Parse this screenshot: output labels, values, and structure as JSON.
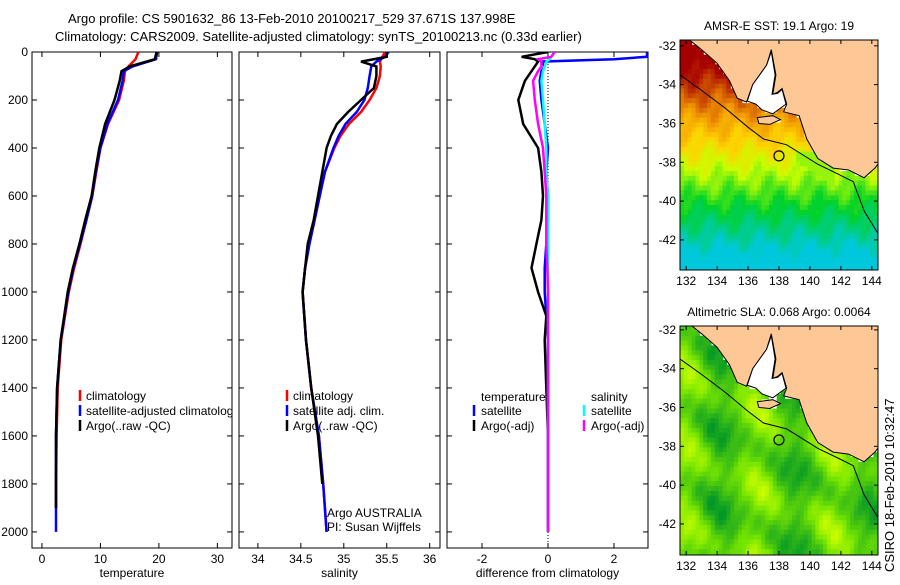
{
  "title_line1": "Argo profile: CS 5901632_86 13-Feb-2010 20100217_529 37.671S 137.998E",
  "title_line2": "Climatology: CARS2009. Satellite-adjusted climatology: synTS_20100213.nc (0.33d earlier)",
  "footer_stamp": "CSIRO 18-Feb-2010 10:32:47",
  "colors": {
    "climatology": "#ff0000",
    "satellite": "#0000ff",
    "argo": "#000000",
    "sal_satellite": "#00ffff",
    "sal_argo": "#ff00ff"
  },
  "chart_data": [
    {
      "type": "line",
      "xlabel": "temperature",
      "ylabel": "",
      "xlim": [
        -1.7,
        32.5
      ],
      "ylim": [
        0,
        2067
      ],
      "y_inverted": true,
      "xticks": [
        "0",
        "10",
        "20",
        "30"
      ],
      "xtick_values": [
        0,
        10,
        20,
        30
      ],
      "ytick_values": [
        0,
        200,
        400,
        600,
        800,
        1000,
        1200,
        1400,
        1600,
        1800,
        2000
      ],
      "yticks": [
        "0",
        "200",
        "400",
        "600",
        "800",
        "1000",
        "1200",
        "1400",
        "1600",
        "1800",
        "2000"
      ],
      "legend": [
        "climatology",
        "satellite-adjusted climatology",
        "Argo(..raw -QC)"
      ],
      "legend_placement": "lower-right",
      "pressure": [
        0,
        30,
        60,
        80,
        120,
        200,
        300,
        400,
        500,
        600,
        700,
        800,
        900,
        1000,
        1200,
        1400,
        1600,
        1800,
        1900,
        2000
      ],
      "series": [
        {
          "name": "climatology",
          "color_key": "climatology",
          "values": [
            16.5,
            16.0,
            14.8,
            14.2,
            14.0,
            13.2,
            11.3,
            10.0,
            9.3,
            8.6,
            7.6,
            6.6,
            5.5,
            4.6,
            3.3,
            2.7,
            2.5,
            2.4,
            2.4,
            null
          ]
        },
        {
          "name": "satellite-adjusted climatology",
          "color_key": "satellite",
          "values": [
            19.7,
            19.5,
            15.5,
            14.0,
            13.8,
            13.0,
            11.2,
            10.0,
            9.2,
            8.6,
            7.6,
            6.5,
            5.4,
            4.5,
            3.2,
            2.6,
            2.4,
            2.4,
            2.4,
            2.4
          ]
        },
        {
          "name": "Argo(..raw -QC)",
          "color_key": "argo",
          "values": [
            19.6,
            19.3,
            15.0,
            13.6,
            13.3,
            12.4,
            10.8,
            9.8,
            9.1,
            8.5,
            7.4,
            6.4,
            5.3,
            4.4,
            3.2,
            2.6,
            2.4,
            2.4,
            2.4,
            null
          ]
        }
      ]
    },
    {
      "type": "line",
      "xlabel": "salinity",
      "xlim": [
        33.78,
        36.12
      ],
      "ylim": [
        0,
        2067
      ],
      "y_inverted": true,
      "xticks": [
        "34",
        "34.5",
        "35",
        "35.5",
        "36"
      ],
      "xtick_values": [
        34,
        34.5,
        35,
        35.5,
        36
      ],
      "ytick_values": [
        0,
        200,
        400,
        600,
        800,
        1000,
        1200,
        1400,
        1600,
        1800,
        2000
      ],
      "legend": [
        "climatology",
        "satellite adj. clim.",
        "Argo(..raw -QC)"
      ],
      "legend_placement": "lower-right",
      "annotation": [
        "Argo AUSTRALIA",
        "PI: Susan Wijffels"
      ],
      "pressure": [
        0,
        20,
        40,
        60,
        100,
        150,
        200,
        250,
        300,
        350,
        400,
        500,
        600,
        700,
        800,
        900,
        1000,
        1200,
        1400,
        1600,
        1800,
        2000
      ],
      "series": [
        {
          "name": "climatology",
          "color_key": "climatology",
          "values": [
            35.48,
            35.45,
            35.42,
            35.43,
            35.42,
            35.38,
            35.3,
            35.2,
            35.06,
            34.96,
            34.89,
            34.78,
            34.72,
            34.66,
            34.6,
            34.55,
            34.52,
            34.56,
            34.62,
            34.71,
            34.76,
            34.8
          ]
        },
        {
          "name": "satellite adj. clim.",
          "color_key": "satellite",
          "values": [
            35.52,
            35.48,
            35.38,
            35.32,
            35.3,
            35.28,
            35.24,
            35.15,
            35.02,
            34.94,
            34.88,
            34.78,
            34.72,
            34.66,
            34.6,
            34.55,
            34.52,
            34.56,
            34.62,
            34.71,
            34.76,
            34.8
          ]
        },
        {
          "name": "Argo(..raw -QC)",
          "color_key": "argo",
          "values": [
            35.5,
            35.5,
            35.2,
            35.38,
            35.38,
            35.35,
            35.2,
            35.05,
            34.92,
            34.85,
            34.8,
            34.75,
            34.7,
            34.65,
            34.58,
            34.55,
            34.52,
            34.56,
            34.62,
            34.7,
            34.75,
            null
          ]
        }
      ]
    },
    {
      "type": "line",
      "xlabel": "difference from climatology",
      "xlim": [
        -3.06,
        3.03
      ],
      "ylim": [
        0,
        2067
      ],
      "y_inverted": true,
      "xticks": [
        "-2",
        "0",
        "2"
      ],
      "xtick_values": [
        -2,
        0,
        2
      ],
      "ytick_values": [
        0,
        200,
        400,
        600,
        800,
        1000,
        1200,
        1400,
        1600,
        1800,
        2000
      ],
      "legend_groups": [
        {
          "heading": "temperature",
          "items": [
            {
              "label": "satellite",
              "color_key": "satellite"
            },
            {
              "label": "Argo(-adj)",
              "color_key": "argo"
            }
          ]
        },
        {
          "heading": "salinity",
          "items": [
            {
              "label": "satellite",
              "color_key": "sal_satellite"
            },
            {
              "label": "Argo(-adj)",
              "color_key": "sal_argo"
            }
          ]
        }
      ],
      "pressure": [
        0,
        20,
        30,
        40,
        60,
        80,
        120,
        200,
        300,
        400,
        500,
        600,
        700,
        800,
        900,
        1000,
        1100,
        1200,
        1400,
        1600,
        1800,
        2000
      ],
      "series": [
        {
          "name": "temperature satellite",
          "color_key": "satellite",
          "values": [
            3.0,
            3.0,
            2.0,
            -0.2,
            -0.1,
            -0.2,
            -0.25,
            -0.2,
            -0.1,
            0,
            -0.05,
            0,
            0,
            -0.05,
            -0.1,
            -0.1,
            -0.05,
            0,
            0,
            0,
            0,
            0
          ]
        },
        {
          "name": "temperature Argo(-adj)",
          "color_key": "argo",
          "values": [
            0,
            -0.8,
            -0.4,
            -0.3,
            -0.4,
            -0.5,
            -0.7,
            -0.9,
            -0.75,
            -0.3,
            -0.2,
            -0.15,
            -0.2,
            -0.35,
            -0.5,
            -0.3,
            -0.05,
            -0.1,
            -0.05,
            0,
            0,
            0
          ]
        },
        {
          "name": "salinity satellite",
          "color_key": "sal_satellite",
          "values": [
            0.2,
            0.1,
            0.05,
            -0.05,
            -0.1,
            -0.15,
            -0.2,
            -0.15,
            -0.1,
            -0.05,
            -0.05,
            0,
            0,
            0,
            0,
            0,
            0,
            0,
            0,
            0,
            0,
            0
          ]
        },
        {
          "name": "salinity Argo(-adj)",
          "color_key": "sal_argo",
          "values": [
            0.2,
            0.1,
            -0.3,
            -0.2,
            -0.2,
            -0.3,
            -0.45,
            -0.4,
            -0.3,
            -0.15,
            -0.1,
            -0.05,
            -0.05,
            -0.05,
            -0.02,
            0,
            0,
            0,
            0,
            0,
            0,
            0
          ]
        }
      ]
    }
  ],
  "maps": [
    {
      "title": "AMSR-E SST: 19.1 Argo: 19",
      "kind": "sst",
      "lon_range": [
        131.6,
        144.4
      ],
      "lat_range": [
        -31.7,
        -43.55
      ],
      "xticks": [
        "132",
        "134",
        "136",
        "138",
        "140",
        "142",
        "144"
      ],
      "yticks": [
        "-32",
        "-34",
        "-36",
        "-38",
        "-40",
        "-42"
      ],
      "profile_lon": 137.998,
      "profile_lat": -37.671
    },
    {
      "title": "Altimetric SLA: 0.068 Argo: 0.0064",
      "kind": "sla",
      "lon_range": [
        131.6,
        144.4
      ],
      "lat_range": [
        -31.8,
        -43.6
      ],
      "xticks": [
        "132",
        "134",
        "136",
        "138",
        "140",
        "142",
        "144"
      ],
      "yticks": [
        "-32",
        "-34",
        "-36",
        "-38",
        "-40",
        "-42"
      ],
      "profile_lon": 137.998,
      "profile_lat": -37.671
    }
  ]
}
